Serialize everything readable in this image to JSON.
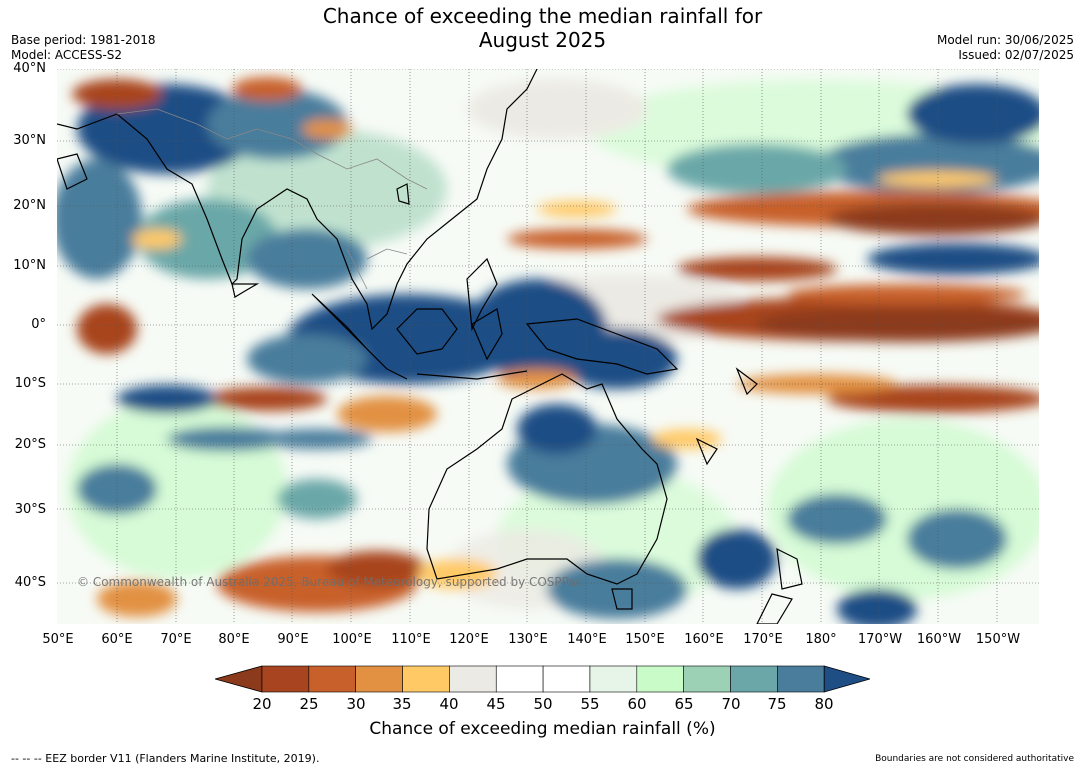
{
  "header": {
    "title_line1": "Chance of exceeding the median rainfall for",
    "title_line2": "August 2025",
    "base_period": "Base period: 1981-2018",
    "model": "Model: ACCESS-S2",
    "model_run": "Model run: 30/06/2025",
    "issued": "Issued: 02/07/2025"
  },
  "map": {
    "lat_labels": [
      "40°N",
      "30°N",
      "20°N",
      "10°N",
      "0°",
      "10°S",
      "20°S",
      "30°S",
      "40°S"
    ],
    "lon_labels": [
      "50°E",
      "60°E",
      "70°E",
      "80°E",
      "90°E",
      "100°E",
      "110°E",
      "120°E",
      "130°E",
      "140°E",
      "150°E",
      "160°E",
      "170°E",
      "180°",
      "170°W",
      "160°W",
      "150°W"
    ],
    "copyright": "© Commonwealth of Australia 2025, Bureau of Meteorology, supported by COSPPac"
  },
  "colorbar": {
    "ticks": [
      "20",
      "25",
      "30",
      "35",
      "40",
      "45",
      "50",
      "55",
      "60",
      "65",
      "70",
      "75",
      "80"
    ],
    "colors": [
      "#8c3a1c",
      "#a8441f",
      "#c8602c",
      "#e29142",
      "#ffc966",
      "#eceae4",
      "#ffffff",
      "#ffffff",
      "#e7f5e8",
      "#c9fbc9",
      "#9cd1b5",
      "#6ba7a8",
      "#4a7d9c",
      "#1f4e85"
    ],
    "title": "Chance of exceeding median rainfall (%)"
  },
  "footer": {
    "eez_note": "--  --  -- EEZ border V11 (Flanders Marine Institute, 2019).",
    "boundaries_note": "Boundaries are not considered authoritative"
  }
}
